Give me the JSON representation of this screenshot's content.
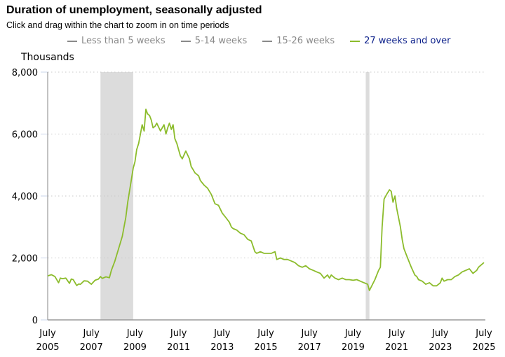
{
  "header": {
    "title": "Duration of unemployment, seasonally adjusted",
    "subtitle": "Click and drag within the chart to zoom in on time periods"
  },
  "legend": [
    {
      "label": "Less than 5 weeks",
      "active": false
    },
    {
      "label": "5-14 weeks",
      "active": false
    },
    {
      "label": "15-26 weeks",
      "active": false
    },
    {
      "label": "27 weeks and over",
      "active": true
    }
  ],
  "colors": {
    "series": "#8cbc2c",
    "inactive_legend": "#8a8a8a",
    "active_legend_text": "#0b1f8a",
    "recession": "#dcdcdc",
    "grid": "#c8c8c8",
    "axis": "#9a9a9a"
  },
  "chart_data": {
    "type": "line",
    "title": "Duration of unemployment, seasonally adjusted",
    "xlabel": "",
    "ylabel": "Thousands",
    "ylim": [
      0,
      8000
    ],
    "xlim": [
      2005.5,
      2025.5
    ],
    "yticks": [
      0,
      2000,
      4000,
      6000,
      8000
    ],
    "ytick_labels": [
      "0",
      "2,000",
      "4,000",
      "6,000",
      "8,000"
    ],
    "xticks": [
      {
        "line1": "July",
        "line2": "2005",
        "x": 2005.5
      },
      {
        "line1": "July",
        "line2": "2007",
        "x": 2007.5
      },
      {
        "line1": "July",
        "line2": "2009",
        "x": 2009.5
      },
      {
        "line1": "July",
        "line2": "2011",
        "x": 2011.5
      },
      {
        "line1": "July",
        "line2": "2013",
        "x": 2013.5
      },
      {
        "line1": "July",
        "line2": "2015",
        "x": 2015.5
      },
      {
        "line1": "July",
        "line2": "2017",
        "x": 2017.5
      },
      {
        "line1": "July",
        "line2": "2019",
        "x": 2019.5
      },
      {
        "line1": "July",
        "line2": "2021",
        "x": 2021.5
      },
      {
        "line1": "July",
        "line2": "2023",
        "x": 2023.5
      },
      {
        "line1": "July",
        "line2": "2025",
        "x": 2025.5
      }
    ],
    "grid": true,
    "legend_position": "top",
    "recessions": [
      {
        "start": 2007.92,
        "end": 2009.42
      },
      {
        "start": 2020.08,
        "end": 2020.25
      }
    ],
    "series": [
      {
        "name": "27 weeks and over",
        "x": [
          2005.5,
          2005.67,
          2005.83,
          2006.0,
          2006.08,
          2006.17,
          2006.33,
          2006.5,
          2006.58,
          2006.67,
          2006.83,
          2006.92,
          2007.0,
          2007.17,
          2007.33,
          2007.5,
          2007.67,
          2007.83,
          2007.92,
          2008.0,
          2008.17,
          2008.33,
          2008.42,
          2008.58,
          2008.75,
          2008.92,
          2009.0,
          2009.08,
          2009.17,
          2009.33,
          2009.42,
          2009.5,
          2009.58,
          2009.67,
          2009.75,
          2009.83,
          2009.92,
          2010.0,
          2010.08,
          2010.17,
          2010.25,
          2010.33,
          2010.42,
          2010.5,
          2010.67,
          2010.83,
          2010.92,
          2011.0,
          2011.08,
          2011.17,
          2011.25,
          2011.33,
          2011.42,
          2011.5,
          2011.58,
          2011.67,
          2011.83,
          2012.0,
          2012.08,
          2012.17,
          2012.25,
          2012.42,
          2012.5,
          2012.67,
          2012.83,
          2013.0,
          2013.17,
          2013.33,
          2013.5,
          2013.67,
          2013.83,
          2013.92,
          2014.0,
          2014.17,
          2014.33,
          2014.5,
          2014.67,
          2014.83,
          2015.0,
          2015.08,
          2015.25,
          2015.42,
          2015.58,
          2015.75,
          2015.92,
          2016.0,
          2016.17,
          2016.33,
          2016.5,
          2016.67,
          2016.83,
          2017.0,
          2017.17,
          2017.33,
          2017.5,
          2017.67,
          2017.83,
          2018.0,
          2018.17,
          2018.33,
          2018.42,
          2018.5,
          2018.67,
          2018.83,
          2019.0,
          2019.17,
          2019.33,
          2019.5,
          2019.67,
          2019.83,
          2020.0,
          2020.17,
          2020.25,
          2020.5,
          2020.67,
          2020.75,
          2020.83,
          2020.92,
          2021.0,
          2021.08,
          2021.17,
          2021.25,
          2021.33,
          2021.42,
          2021.5,
          2021.67,
          2021.75,
          2021.83,
          2022.0,
          2022.17,
          2022.33,
          2022.42,
          2022.5,
          2022.67,
          2022.83,
          2023.0,
          2023.17,
          2023.33,
          2023.42,
          2023.5,
          2023.58,
          2023.67,
          2023.83,
          2024.0,
          2024.17,
          2024.33,
          2024.5,
          2024.67,
          2024.83,
          2025.0,
          2025.08,
          2025.17,
          2025.25,
          2025.5
        ],
        "values": [
          1420,
          1460,
          1400,
          1200,
          1350,
          1330,
          1350,
          1180,
          1320,
          1300,
          1110,
          1160,
          1150,
          1260,
          1250,
          1150,
          1280,
          1320,
          1400,
          1340,
          1390,
          1360,
          1600,
          1900,
          2300,
          2700,
          3000,
          3300,
          3800,
          4500,
          4900,
          5100,
          5500,
          5700,
          6000,
          6300,
          6100,
          6800,
          6650,
          6600,
          6450,
          6200,
          6250,
          6350,
          6100,
          6300,
          6000,
          6200,
          6350,
          6150,
          6300,
          5850,
          5700,
          5500,
          5300,
          5200,
          5450,
          5200,
          4950,
          4850,
          4750,
          4650,
          4500,
          4350,
          4250,
          4050,
          3750,
          3700,
          3450,
          3300,
          3150,
          3000,
          2950,
          2900,
          2800,
          2750,
          2600,
          2550,
          2200,
          2150,
          2200,
          2150,
          2150,
          2150,
          2200,
          1950,
          2000,
          1950,
          1950,
          1900,
          1850,
          1750,
          1700,
          1750,
          1650,
          1600,
          1550,
          1500,
          1350,
          1450,
          1350,
          1450,
          1350,
          1300,
          1350,
          1300,
          1300,
          1280,
          1300,
          1250,
          1200,
          1150,
          950,
          1300,
          1600,
          1700,
          3000,
          3900,
          4000,
          4100,
          4200,
          4150,
          3800,
          4000,
          3600,
          3000,
          2600,
          2300,
          2000,
          1700,
          1450,
          1400,
          1300,
          1250,
          1150,
          1200,
          1100,
          1100,
          1150,
          1200,
          1350,
          1250,
          1300,
          1300,
          1400,
          1450,
          1550,
          1600,
          1650,
          1500,
          1550,
          1600,
          1700,
          1850
        ]
      }
    ]
  }
}
